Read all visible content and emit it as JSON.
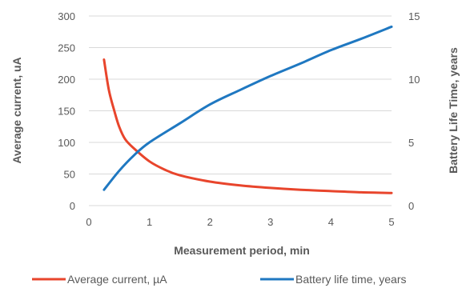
{
  "chart_data": {
    "type": "line",
    "xlabel": "Measurement period, min",
    "ylabel_left": "Average current, uA",
    "ylabel_right": "Battery Life Time, years",
    "xlim": [
      0,
      5
    ],
    "ylim_left": [
      0,
      300
    ],
    "ylim_right": [
      0,
      15
    ],
    "x_ticks": [
      "0",
      "1",
      "2",
      "3",
      "4",
      "5"
    ],
    "y_left_ticks": [
      "0",
      "50",
      "100",
      "150",
      "200",
      "250",
      "300"
    ],
    "y_right_ticks": [
      "0",
      "5",
      "10",
      "15"
    ],
    "grid": "horizontal",
    "legend_position": "bottom",
    "series": [
      {
        "name": "Average current, µA",
        "axis": "left",
        "color": "#E8452C",
        "x": [
          0.25,
          0.33,
          0.42,
          0.5,
          0.6,
          0.75,
          1,
          1.25,
          1.5,
          2,
          2.5,
          3,
          3.5,
          4,
          4.5,
          5
        ],
        "y": [
          231,
          183,
          150,
          125,
          105,
          90,
          70,
          57,
          48,
          38,
          32,
          28,
          25,
          23,
          21,
          20
        ]
      },
      {
        "name": "Battery life time, years",
        "axis": "right",
        "color": "#1F78C1",
        "x": [
          0.25,
          0.5,
          0.75,
          1,
          1.5,
          2,
          2.5,
          3,
          3.5,
          4,
          4.5,
          5
        ],
        "y": [
          1.25,
          2.75,
          4.0,
          5.0,
          6.5,
          8.0,
          9.15,
          10.25,
          11.25,
          12.3,
          13.2,
          14.15
        ]
      }
    ]
  }
}
